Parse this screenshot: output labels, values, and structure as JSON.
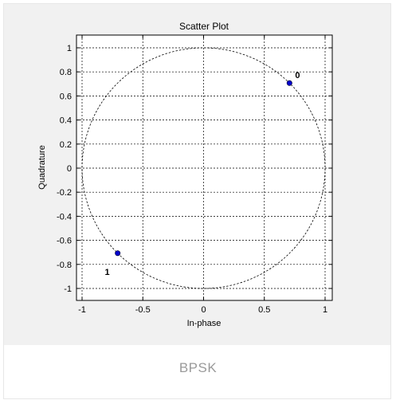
{
  "caption": "BPSK",
  "chart_data": {
    "type": "scatter",
    "title": "Scatter Plot",
    "xlabel": "In-phase",
    "ylabel": "Quadrature",
    "xlim": [
      -1.0,
      1.0
    ],
    "ylim": [
      -1.0,
      1.0
    ],
    "xticks": [
      -1,
      -0.5,
      0,
      0.5,
      1
    ],
    "xtick_labels": [
      "-1",
      "-0.5",
      "0",
      "0.5",
      "1"
    ],
    "yticks": [
      1,
      0.8,
      0.6,
      0.4,
      0.2,
      0,
      -0.2,
      -0.4,
      -0.6,
      -0.8,
      -1
    ],
    "ytick_labels": [
      "1",
      "0.8",
      "0.6",
      "0.4",
      "0.2",
      "0",
      "-0.2",
      "-0.4",
      "-0.6",
      "-0.8",
      "-1"
    ],
    "grid": true,
    "reference_circle_radius": 1.0,
    "points": [
      {
        "x": 0.707,
        "y": 0.707,
        "label": "0"
      },
      {
        "x": -0.707,
        "y": -0.707,
        "label": "1"
      }
    ],
    "colors": {
      "point": "#0000cc",
      "grid": "#000000",
      "axis": "#000000"
    }
  }
}
